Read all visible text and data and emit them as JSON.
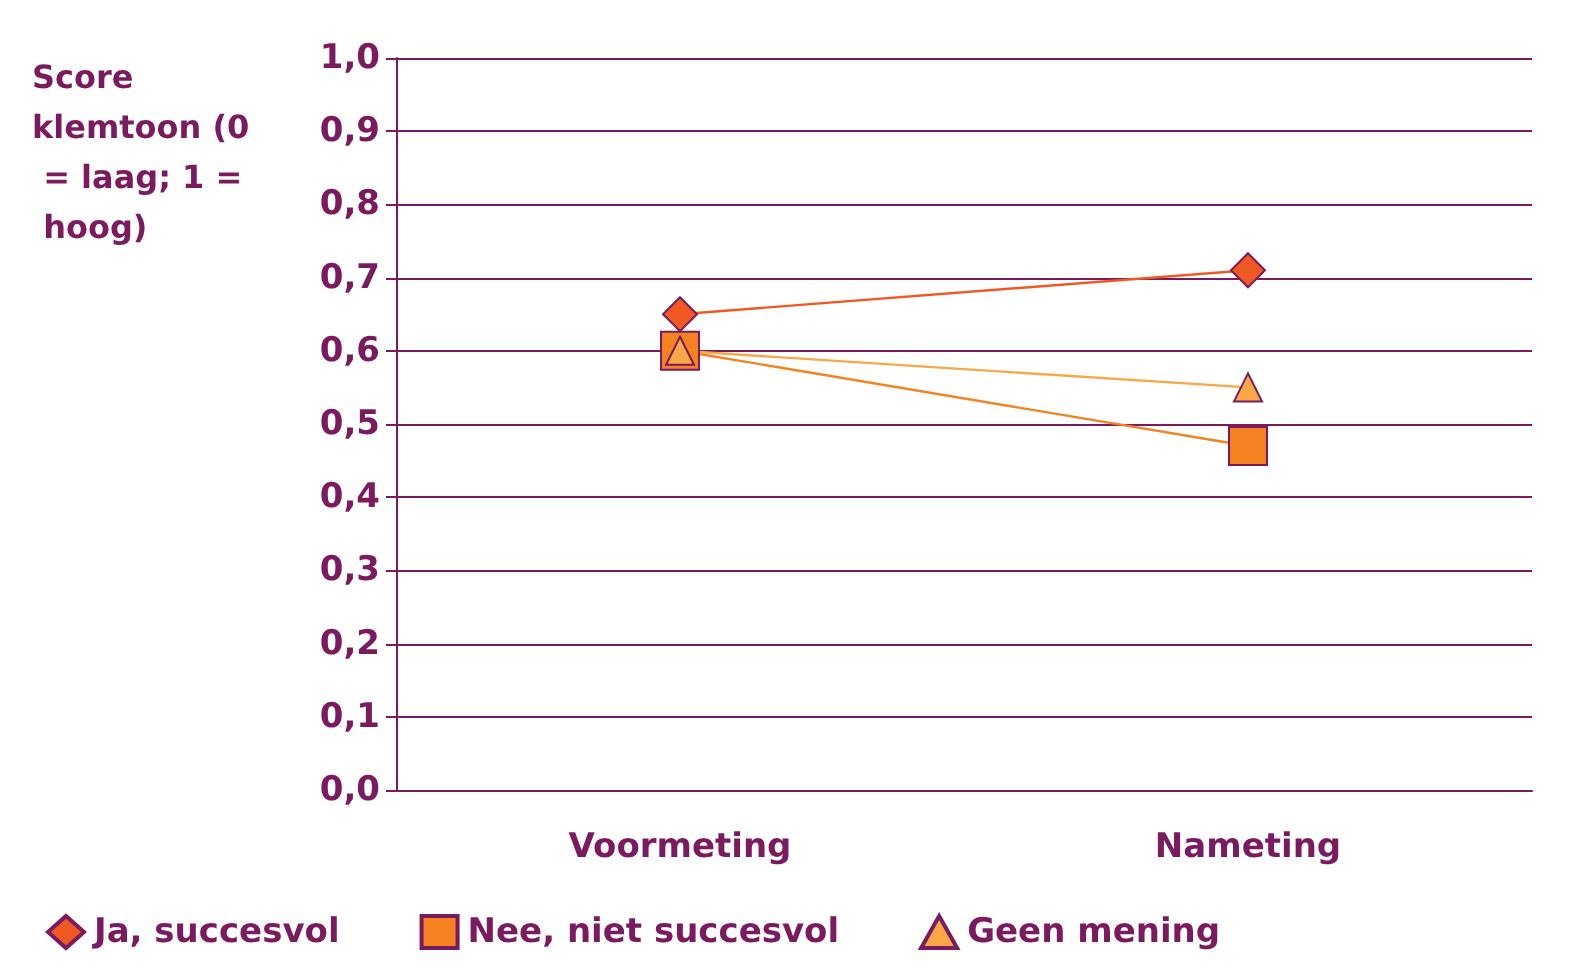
{
  "chart_data": {
    "type": "line",
    "ylabel": "Score klemtoon (0 = laag; 1 = hoog)",
    "categories": [
      "Voormeting",
      "Nameting"
    ],
    "series": [
      {
        "name": "Ja, succesvol",
        "color": "#f05a22",
        "marker": "diamond",
        "values": [
          0.65,
          0.71
        ]
      },
      {
        "name": "Nee, niet succesvol",
        "color": "#f58220",
        "marker": "square",
        "values": [
          0.6,
          0.47
        ]
      },
      {
        "name": "Geen mening",
        "color": "#f9a848",
        "marker": "triangle",
        "values": [
          0.6,
          0.55
        ]
      }
    ],
    "ylim": [
      0,
      1
    ],
    "yticks": [
      {
        "value": 0,
        "label": "0,0"
      },
      {
        "value": 0.1,
        "label": "0,1"
      },
      {
        "value": 0.2,
        "label": "0,2"
      },
      {
        "value": 0.3,
        "label": "0,3"
      },
      {
        "value": 0.4,
        "label": "0,4"
      },
      {
        "value": 0.5,
        "label": "0,5"
      },
      {
        "value": 0.6,
        "label": "0,6"
      },
      {
        "value": 0.7,
        "label": "0,7"
      },
      {
        "value": 0.8,
        "label": "0,8"
      },
      {
        "value": 0.9,
        "label": "0,9"
      },
      {
        "value": 1,
        "label": "1,0"
      }
    ],
    "grid": "y",
    "legend": "bottom",
    "line_style": "solid"
  }
}
